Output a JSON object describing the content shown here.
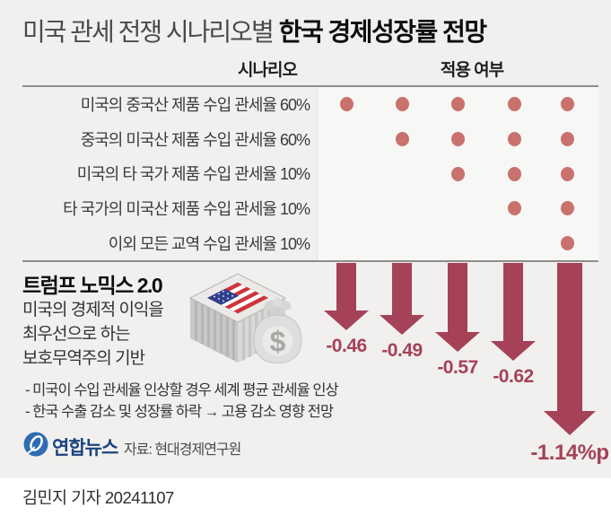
{
  "title": {
    "light": "미국 관세 전쟁 시나리오별",
    "bold": "한국 경제성장률 전망"
  },
  "table": {
    "col_scenario": "시나리오",
    "col_applied": "적용 여부",
    "rows": [
      {
        "label": "미국의 중국산 제품 수입 관세율 60%",
        "applied": [
          1,
          1,
          1,
          1,
          1
        ]
      },
      {
        "label": "중국의 미국산 제품 수입 관세율 60%",
        "applied": [
          0,
          1,
          1,
          1,
          1
        ]
      },
      {
        "label": "미국의 타 국가 제품 수입 관세율 10%",
        "applied": [
          0,
          0,
          1,
          1,
          1
        ]
      },
      {
        "label": "타 국가의 미국산 제품 수입 관세율 10%",
        "applied": [
          0,
          0,
          0,
          1,
          1
        ]
      },
      {
        "label": "이외 모든 교역 수입 관세율 10%",
        "applied": [
          0,
          0,
          0,
          0,
          1
        ]
      }
    ]
  },
  "impact": {
    "values": [
      "-0.46",
      "-0.49",
      "-0.57",
      "-0.62",
      "-1.14%p"
    ]
  },
  "trump": {
    "heading": "트럼프 노믹스 2.0",
    "lines": [
      "미국의 경제적 이익을",
      "최우선으로 하는",
      "보호무역주의 기반"
    ]
  },
  "notes": [
    "- 미국이 수입 관세율 인상할 경우 세계 평균 관세율 인상",
    "- 한국 수출 감소 및 성장률 하락 → 고용 감소 영향 전망"
  ],
  "source": {
    "logo_text": "연합뉴스",
    "credit": "자료: 현대경제연구원"
  },
  "footer": {
    "byline": "김민지 기자 20241107"
  },
  "colors": {
    "bg": "#f1f0ee",
    "dot": "#c9716d",
    "accent_red": "#a54257",
    "logo_blue": "#2e6cb3",
    "logo_text_blue": "#1a437f"
  },
  "chart_data": {
    "type": "table",
    "title": "미국 관세 전쟁 시나리오별 한국 경제성장률 전망",
    "scenarios": [
      "미국의 중국산 제품 수입 관세율 60%",
      "중국의 미국산 제품 수입 관세율 60%",
      "미국의 타 국가 제품 수입 관세율 10%",
      "타 국가의 미국산 제품 수입 관세율 10%",
      "이외 모든 교역 수입 관세율 10%"
    ],
    "applied_matrix": [
      [
        1,
        1,
        1,
        1,
        1
      ],
      [
        0,
        1,
        1,
        1,
        1
      ],
      [
        0,
        0,
        1,
        1,
        1
      ],
      [
        0,
        0,
        0,
        1,
        1
      ],
      [
        0,
        0,
        0,
        0,
        1
      ]
    ],
    "growth_impact_pp": [
      -0.46,
      -0.49,
      -0.57,
      -0.62,
      -1.14
    ],
    "impact_labels": [
      "-0.46",
      "-0.49",
      "-0.57",
      "-0.62",
      "-1.14%p"
    ],
    "unit": "%p",
    "source": "현대경제연구원"
  }
}
